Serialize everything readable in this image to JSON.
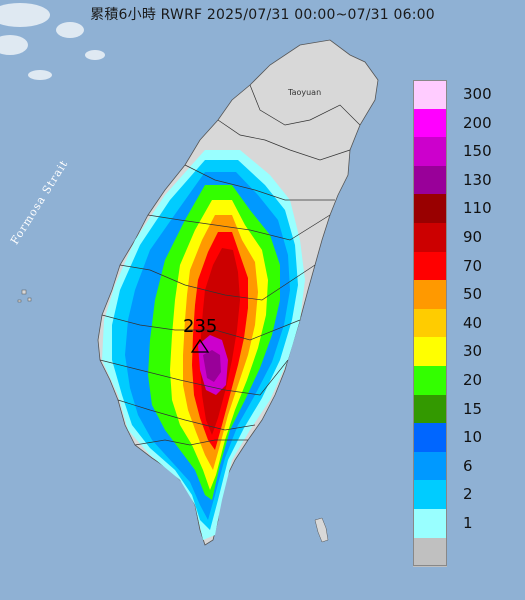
{
  "title": "累積6小時 RWRF 2025/07/31 00:00~07/31 06:00",
  "strait_label": "Formosa Strait",
  "city_label": "Taoyuan",
  "max_value_label": "235",
  "legend": {
    "items": [
      {
        "label": "300",
        "color": "#ffccff"
      },
      {
        "label": "200",
        "color": "#ff00ff"
      },
      {
        "label": "150",
        "color": "#cc00cc"
      },
      {
        "label": "130",
        "color": "#990099"
      },
      {
        "label": "110",
        "color": "#990000"
      },
      {
        "label": "90",
        "color": "#cc0000"
      },
      {
        "label": "70",
        "color": "#ff0000"
      },
      {
        "label": "50",
        "color": "#ff9900"
      },
      {
        "label": "40",
        "color": "#ffcc00"
      },
      {
        "label": "30",
        "color": "#ffff00"
      },
      {
        "label": "20",
        "color": "#33ff00"
      },
      {
        "label": "15",
        "color": "#339900"
      },
      {
        "label": "10",
        "color": "#0066ff"
      },
      {
        "label": "6",
        "color": "#0099ff"
      },
      {
        "label": "2",
        "color": "#00ccff"
      },
      {
        "label": "1",
        "color": "#99ffff"
      },
      {
        "label": "",
        "color": "#c0c0c0"
      }
    ]
  },
  "colors": {
    "sea": "#8fb1d4",
    "land": "#d8d8d8",
    "no_rain": "#c0c0c0"
  }
}
